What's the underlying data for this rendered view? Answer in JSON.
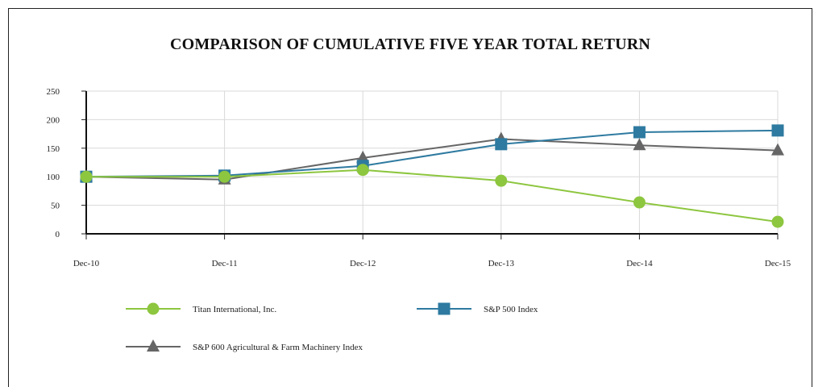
{
  "chart_data": {
    "type": "line",
    "title": "COMPARISON OF CUMULATIVE FIVE YEAR TOTAL RETURN",
    "categories": [
      "Dec-10",
      "Dec-11",
      "Dec-12",
      "Dec-13",
      "Dec-14",
      "Dec-15"
    ],
    "y_ticks": [
      "0",
      "50",
      "100",
      "150",
      "200",
      "250"
    ],
    "ylim": [
      0,
      250
    ],
    "grid": true,
    "legend_position": "bottom",
    "series": [
      {
        "name": "Titan International, Inc.",
        "values": [
          100,
          100,
          112,
          93,
          55,
          21
        ],
        "color": "#8dc63f",
        "marker": "circle"
      },
      {
        "name": "S&P 500 Index",
        "values": [
          100,
          102,
          119,
          157,
          178,
          181
        ],
        "color": "#2e7aa0",
        "marker": "square"
      },
      {
        "name": "S&P 600 Agricultural & Farm Machinery Index",
        "values": [
          100,
          95,
          133,
          166,
          155,
          146
        ],
        "color": "#666666",
        "marker": "triangle"
      }
    ]
  }
}
